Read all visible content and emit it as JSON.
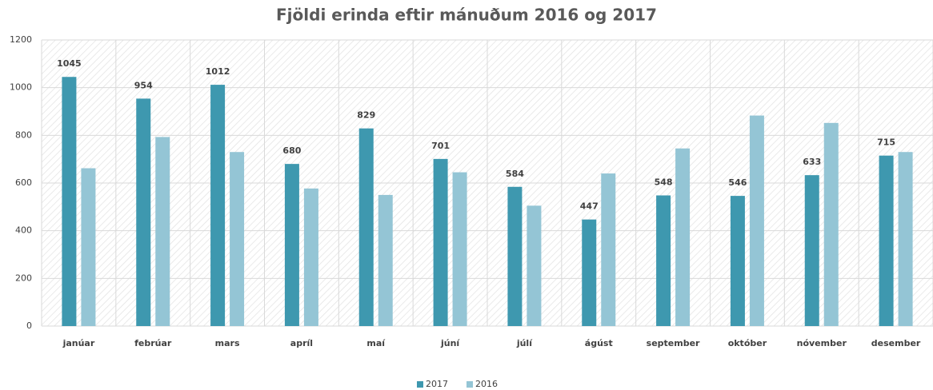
{
  "chart_data": {
    "type": "bar",
    "title": "Fjöldi erinda eftir mánuðum 2016 og 2017",
    "categories": [
      "janúar",
      "febrúar",
      "mars",
      "apríl",
      "maí",
      "júní",
      "júlí",
      "ágúst",
      "september",
      "október",
      "nóvember",
      "desember"
    ],
    "series": [
      {
        "name": "2017",
        "color": "#3e98af",
        "values": [
          1045,
          954,
          1012,
          680,
          829,
          701,
          584,
          447,
          548,
          546,
          633,
          715
        ],
        "data_labels": true
      },
      {
        "name": "2016",
        "color": "#94c5d5",
        "values": [
          662,
          793,
          730,
          577,
          550,
          645,
          505,
          640,
          745,
          883,
          852,
          730
        ],
        "data_labels": false
      }
    ],
    "ylim": [
      0,
      1200
    ],
    "yticks": [
      0,
      200,
      400,
      600,
      800,
      1000,
      1200
    ],
    "grid": true,
    "legend": "bottom"
  }
}
